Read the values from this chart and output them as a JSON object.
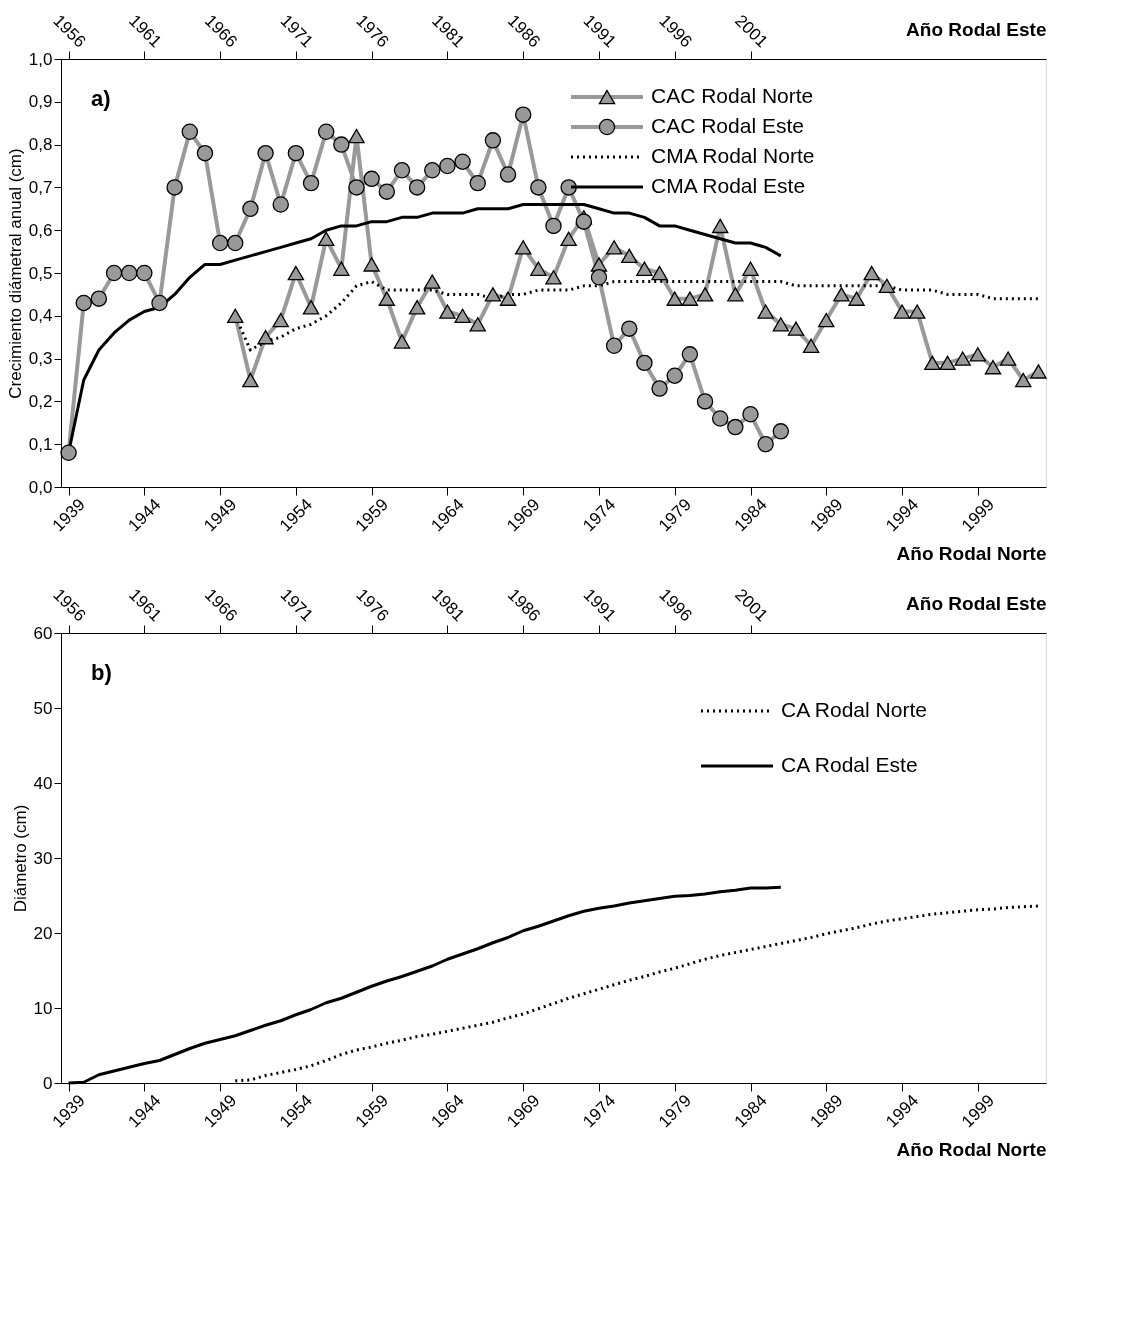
{
  "chart_data": [
    {
      "type": "line",
      "xlabel": "Año Rodal Norte",
      "x2label": "Año Rodal Este",
      "ylabel": "Crecimiento diámetral anual (cm)",
      "annotations": [
        "a)"
      ],
      "legend": "top right",
      "grid": false,
      "xlim": [
        1938.5,
        2003.5
      ],
      "xticks": [
        1939,
        1944,
        1949,
        1954,
        1959,
        1964,
        1969,
        1974,
        1979,
        1984,
        1989,
        1994,
        1999
      ],
      "x2lim": [
        1955.5,
        2020.5
      ],
      "x2ticks": [
        1956,
        1961,
        1966,
        1971,
        1976,
        1981,
        1986,
        1991,
        1996,
        2001
      ],
      "ylim": [
        0,
        1
      ],
      "yticks": [
        {
          "value": 0,
          "label": "0,0"
        },
        {
          "value": 0.1,
          "label": "0,1"
        },
        {
          "value": 0.2,
          "label": "0,2"
        },
        {
          "value": 0.3,
          "label": "0,3"
        },
        {
          "value": 0.4,
          "label": "0,4"
        },
        {
          "value": 0.5,
          "label": "0,5"
        },
        {
          "value": 0.6,
          "label": "0,6"
        },
        {
          "value": 0.7,
          "label": "0,7"
        },
        {
          "value": 0.8,
          "label": "0,8"
        },
        {
          "value": 0.9,
          "label": "0,9"
        },
        {
          "value": 1,
          "label": "1,0"
        }
      ],
      "series": [
        {
          "name": "CAC Rodal Norte",
          "color": "#999999",
          "marker": "triangle",
          "line_style": "solid",
          "x": [
            1950,
            1951,
            1952,
            1953,
            1954,
            1955,
            1956,
            1957,
            1958,
            1959,
            1960,
            1961,
            1962,
            1963,
            1964,
            1965,
            1966,
            1967,
            1968,
            1969,
            1970,
            1971,
            1972,
            1973,
            1974,
            1975,
            1976,
            1977,
            1978,
            1979,
            1980,
            1981,
            1982,
            1983,
            1984,
            1985,
            1986,
            1987,
            1988,
            1989,
            1990,
            1991,
            1992,
            1993,
            1994,
            1995,
            1996,
            1997,
            1998,
            1999,
            2000,
            2001,
            2002,
            2003
          ],
          "values": [
            0.4,
            0.25,
            0.35,
            0.39,
            0.5,
            0.42,
            0.58,
            0.51,
            0.82,
            0.52,
            0.44,
            0.34,
            0.42,
            0.48,
            0.41,
            0.4,
            0.38,
            0.45,
            0.44,
            0.56,
            0.51,
            0.49,
            0.58,
            0.63,
            0.52,
            0.56,
            0.54,
            0.51,
            0.5,
            0.44,
            0.44,
            0.45,
            0.61,
            0.45,
            0.51,
            0.41,
            0.38,
            0.37,
            0.33,
            0.39,
            0.45,
            0.44,
            0.5,
            0.47,
            0.41,
            0.41,
            0.29,
            0.29,
            0.3,
            0.31,
            0.28,
            0.3,
            0.25,
            0.27
          ]
        },
        {
          "name": "CAC Rodal Este",
          "color": "#999999",
          "marker": "circle",
          "line_style": "solid",
          "x": [
            1939,
            1940,
            1941,
            1942,
            1943,
            1944,
            1945,
            1946,
            1947,
            1948,
            1949,
            1950,
            1951,
            1952,
            1953,
            1954,
            1955,
            1956,
            1957,
            1958,
            1959,
            1960,
            1961,
            1962,
            1963,
            1964,
            1965,
            1966,
            1967,
            1968,
            1969,
            1970,
            1971,
            1972,
            1973,
            1974,
            1975,
            1976,
            1977,
            1978,
            1979,
            1980,
            1981,
            1982,
            1983,
            1984,
            1985,
            1986
          ],
          "values": [
            0.08,
            0.43,
            0.44,
            0.5,
            0.5,
            0.5,
            0.43,
            0.7,
            0.83,
            0.78,
            0.57,
            0.57,
            0.65,
            0.78,
            0.66,
            0.78,
            0.71,
            0.83,
            0.8,
            0.7,
            0.72,
            0.69,
            0.74,
            0.7,
            0.74,
            0.75,
            0.76,
            0.71,
            0.81,
            0.73,
            0.87,
            0.7,
            0.61,
            0.7,
            0.62,
            0.49,
            0.33,
            0.37,
            0.29,
            0.23,
            0.26,
            0.31,
            0.2,
            0.16,
            0.14,
            0.17,
            0.1,
            0.13
          ]
        },
        {
          "name": "CMA Rodal Norte",
          "color": "#000000",
          "marker": "none",
          "line_style": "dotted",
          "x": [
            1950,
            1951,
            1952,
            1953,
            1954,
            1955,
            1956,
            1957,
            1958,
            1959,
            1960,
            1961,
            1962,
            1963,
            1964,
            1965,
            1966,
            1967,
            1968,
            1969,
            1970,
            1971,
            1972,
            1973,
            1974,
            1975,
            1976,
            1977,
            1978,
            1979,
            1980,
            1981,
            1982,
            1983,
            1984,
            1985,
            1986,
            1987,
            1988,
            1989,
            1990,
            1991,
            1992,
            1993,
            1994,
            1995,
            1996,
            1997,
            1998,
            1999,
            2000,
            2001,
            2002,
            2003
          ],
          "values": [
            0.4,
            0.32,
            0.34,
            0.35,
            0.37,
            0.38,
            0.4,
            0.43,
            0.47,
            0.48,
            0.46,
            0.46,
            0.46,
            0.46,
            0.45,
            0.45,
            0.45,
            0.44,
            0.45,
            0.45,
            0.46,
            0.46,
            0.46,
            0.47,
            0.47,
            0.48,
            0.48,
            0.48,
            0.48,
            0.48,
            0.48,
            0.48,
            0.48,
            0.48,
            0.48,
            0.48,
            0.48,
            0.47,
            0.47,
            0.47,
            0.47,
            0.47,
            0.47,
            0.47,
            0.46,
            0.46,
            0.46,
            0.45,
            0.45,
            0.45,
            0.44,
            0.44,
            0.44,
            0.44
          ]
        },
        {
          "name": "CMA Rodal Este",
          "color": "#000000",
          "marker": "none",
          "line_style": "solid",
          "x": [
            1939,
            1940,
            1941,
            1942,
            1943,
            1944,
            1945,
            1946,
            1947,
            1948,
            1949,
            1950,
            1951,
            1952,
            1953,
            1954,
            1955,
            1956,
            1957,
            1958,
            1959,
            1960,
            1961,
            1962,
            1963,
            1964,
            1965,
            1966,
            1967,
            1968,
            1969,
            1970,
            1971,
            1972,
            1973,
            1974,
            1975,
            1976,
            1977,
            1978,
            1979,
            1980,
            1981,
            1982,
            1983,
            1984,
            1985,
            1986
          ],
          "values": [
            0.08,
            0.25,
            0.32,
            0.36,
            0.39,
            0.41,
            0.42,
            0.45,
            0.49,
            0.52,
            0.52,
            0.53,
            0.54,
            0.55,
            0.56,
            0.57,
            0.58,
            0.6,
            0.61,
            0.61,
            0.62,
            0.62,
            0.63,
            0.63,
            0.64,
            0.64,
            0.64,
            0.65,
            0.65,
            0.65,
            0.66,
            0.66,
            0.66,
            0.66,
            0.66,
            0.65,
            0.64,
            0.64,
            0.63,
            0.61,
            0.61,
            0.6,
            0.59,
            0.58,
            0.57,
            0.57,
            0.56,
            0.54
          ]
        }
      ]
    },
    {
      "type": "line",
      "xlabel": "Año Rodal Norte",
      "x2label": "Año Rodal Este",
      "ylabel": "Diámetro (cm)",
      "annotations": [
        "b)"
      ],
      "legend": "top right",
      "grid": false,
      "xlim": [
        1938.5,
        2003.5
      ],
      "xticks": [
        1939,
        1944,
        1949,
        1954,
        1959,
        1964,
        1969,
        1974,
        1979,
        1984,
        1989,
        1994,
        1999
      ],
      "x2lim": [
        1955.5,
        2020.5
      ],
      "x2ticks": [
        1956,
        1961,
        1966,
        1971,
        1976,
        1981,
        1986,
        1991,
        1996,
        2001
      ],
      "ylim": [
        0,
        60
      ],
      "yticks": [
        0,
        10,
        20,
        30,
        40,
        50,
        60
      ],
      "series": [
        {
          "name": "CA Rodal Norte",
          "color": "#000000",
          "marker": "none",
          "line_style": "dotted",
          "x": [
            1950,
            1951,
            1952,
            1953,
            1954,
            1955,
            1956,
            1957,
            1958,
            1959,
            1960,
            1961,
            1962,
            1963,
            1964,
            1965,
            1966,
            1967,
            1968,
            1969,
            1970,
            1971,
            1972,
            1973,
            1974,
            1975,
            1976,
            1977,
            1978,
            1979,
            1980,
            1981,
            1982,
            1983,
            1984,
            1985,
            1986,
            1987,
            1988,
            1989,
            1990,
            1991,
            1992,
            1993,
            1994,
            1995,
            1996,
            1997,
            1998,
            1999,
            2000,
            2001,
            2002,
            2003
          ],
          "values": [
            0.3,
            0.4,
            1.0,
            1.4,
            1.8,
            2.3,
            3.0,
            3.8,
            4.4,
            4.8,
            5.3,
            5.7,
            6.2,
            6.5,
            6.9,
            7.3,
            7.7,
            8.1,
            8.7,
            9.2,
            9.9,
            10.6,
            11.3,
            11.9,
            12.5,
            13.1,
            13.7,
            14.2,
            14.8,
            15.3,
            15.9,
            16.5,
            17.0,
            17.4,
            17.8,
            18.2,
            18.6,
            19.0,
            19.4,
            19.9,
            20.3,
            20.7,
            21.2,
            21.6,
            21.9,
            22.2,
            22.5,
            22.7,
            22.9,
            23.1,
            23.2,
            23.4,
            23.5,
            23.6
          ]
        },
        {
          "name": "CA Rodal Este",
          "color": "#000000",
          "marker": "none",
          "line_style": "solid",
          "x": [
            1939,
            1940,
            1941,
            1942,
            1943,
            1944,
            1945,
            1946,
            1947,
            1948,
            1949,
            1950,
            1951,
            1952,
            1953,
            1954,
            1955,
            1956,
            1957,
            1958,
            1959,
            1960,
            1961,
            1962,
            1963,
            1964,
            1965,
            1966,
            1967,
            1968,
            1969,
            1970,
            1971,
            1972,
            1973,
            1974,
            1975,
            1976,
            1977,
            1978,
            1979,
            1980,
            1981,
            1982,
            1983,
            1984,
            1985,
            1986
          ],
          "values": [
            0,
            0.1,
            1.1,
            1.6,
            2.1,
            2.6,
            3.0,
            3.8,
            4.6,
            5.3,
            5.8,
            6.3,
            7.0,
            7.7,
            8.3,
            9.1,
            9.8,
            10.7,
            11.3,
            12.1,
            12.9,
            13.6,
            14.2,
            14.9,
            15.6,
            16.5,
            17.2,
            17.9,
            18.7,
            19.4,
            20.3,
            20.9,
            21.6,
            22.3,
            22.9,
            23.3,
            23.6,
            24.0,
            24.3,
            24.6,
            24.9,
            25.0,
            25.2,
            25.5,
            25.7,
            26.0,
            26.0,
            26.1
          ]
        }
      ]
    }
  ]
}
